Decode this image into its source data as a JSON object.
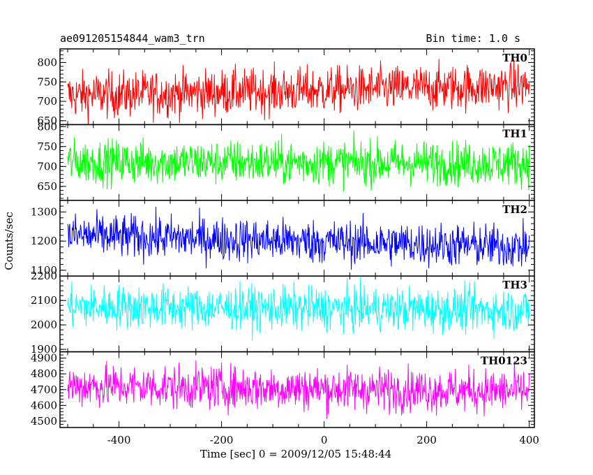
{
  "chart_data": {
    "type": "line",
    "title_left": "ae091205154844_wam3_trn",
    "title_right": "Bin time: 1.0 s",
    "xlabel": "Time [sec] 0 = 2009/12/05 15:48:44",
    "ylabel": "Counts/sec",
    "xlim": [
      -515,
      410
    ],
    "xticks": [
      -400,
      -200,
      0,
      200,
      400
    ],
    "x_range": [
      -500,
      400
    ],
    "bin_time_s": 1.0,
    "grid": false,
    "panels": [
      {
        "name": "TH0",
        "color": "#ff0000",
        "ylim": [
          640,
          835
        ],
        "yticks": [
          650,
          700,
          750,
          800
        ],
        "trend_start": 715,
        "trend_end": 740,
        "noise": 30
      },
      {
        "name": "TH1",
        "color": "#00ff00",
        "ylim": [
          615,
          805
        ],
        "yticks": [
          650,
          700,
          750,
          800
        ],
        "trend_start": 712,
        "trend_end": 708,
        "noise": 28
      },
      {
        "name": "TH2",
        "color": "#0000ff",
        "ylim": [
          1080,
          1340
        ],
        "yticks": [
          1100,
          1200,
          1300
        ],
        "trend_start": 1220,
        "trend_end": 1180,
        "noise": 38
      },
      {
        "name": "TH3",
        "color": "#00ffff",
        "ylim": [
          1890,
          2200
        ],
        "yticks": [
          1900,
          2000,
          2100,
          2200
        ],
        "trend_start": 2075,
        "trend_end": 2060,
        "noise": 45
      },
      {
        "name": "TH0123",
        "color": "#ff00ff",
        "ylim": [
          4460,
          4940
        ],
        "yticks": [
          4500,
          4600,
          4700,
          4800,
          4900
        ],
        "trend_start": 4725,
        "trend_end": 4690,
        "noise": 70
      }
    ]
  }
}
